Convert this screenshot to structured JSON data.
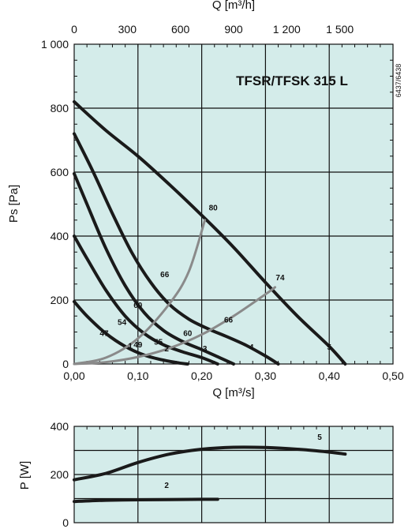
{
  "chart_data": [
    {
      "type": "line",
      "title": "TFSR/TFSK 315 L",
      "xlabel": "Q [m³/s]",
      "ylabel": "Ps [Pa]",
      "top_axis_label": "Q [m³/h]",
      "code": "6437/6438",
      "xlim": [
        0,
        0.5
      ],
      "ylim": [
        0,
        1000
      ],
      "x_ticks": [
        "0,00",
        "0,10",
        "0,20",
        "0,30",
        "0,40",
        "0,50"
      ],
      "y_ticks": [
        "0",
        "200",
        "400",
        "600",
        "800",
        "1 000"
      ],
      "top_ticks": [
        {
          "value": 0,
          "label": "0"
        },
        {
          "value": 300,
          "label": "300"
        },
        {
          "value": 600,
          "label": "600"
        },
        {
          "value": 900,
          "label": "900"
        },
        {
          "value": 1200,
          "label": "1 200"
        },
        {
          "value": 1500,
          "label": "1 500"
        }
      ],
      "grid": true,
      "series": [
        {
          "name": "1",
          "points": [
            [
              0,
              195
            ],
            [
              0.02,
              150
            ],
            [
              0.05,
              95
            ],
            [
              0.08,
              55
            ],
            [
              0.11,
              28
            ],
            [
              0.14,
              12
            ],
            [
              0.165,
              3
            ],
            [
              0.178,
              0
            ]
          ]
        },
        {
          "name": "2",
          "points": [
            [
              0,
              400
            ],
            [
              0.02,
              330
            ],
            [
              0.05,
              230
            ],
            [
              0.08,
              150
            ],
            [
              0.11,
              95
            ],
            [
              0.14,
              60
            ],
            [
              0.17,
              38
            ],
            [
              0.2,
              20
            ],
            [
              0.225,
              0
            ]
          ]
        },
        {
          "name": "3",
          "points": [
            [
              0,
              595
            ],
            [
              0.02,
              500
            ],
            [
              0.05,
              360
            ],
            [
              0.08,
              245
            ],
            [
              0.11,
              160
            ],
            [
              0.14,
              105
            ],
            [
              0.17,
              70
            ],
            [
              0.2,
              45
            ],
            [
              0.23,
              18
            ],
            [
              0.25,
              0
            ]
          ]
        },
        {
          "name": "4",
          "points": [
            [
              0,
              720
            ],
            [
              0.03,
              600
            ],
            [
              0.06,
              470
            ],
            [
              0.09,
              350
            ],
            [
              0.12,
              255
            ],
            [
              0.15,
              185
            ],
            [
              0.18,
              140
            ],
            [
              0.21,
              110
            ],
            [
              0.24,
              85
            ],
            [
              0.27,
              58
            ],
            [
              0.3,
              25
            ],
            [
              0.32,
              0
            ]
          ]
        },
        {
          "name": "5",
          "points": [
            [
              0,
              820
            ],
            [
              0.05,
              730
            ],
            [
              0.1,
              650
            ],
            [
              0.15,
              560
            ],
            [
              0.2,
              465
            ],
            [
              0.25,
              365
            ],
            [
              0.3,
              255
            ],
            [
              0.35,
              150
            ],
            [
              0.4,
              55
            ],
            [
              0.425,
              0
            ]
          ]
        }
      ],
      "system_curves": [
        {
          "label": "80",
          "points": [
            [
              0,
              0
            ],
            [
              0.05,
              20
            ],
            [
              0.1,
              80
            ],
            [
              0.15,
              190
            ],
            [
              0.18,
              290
            ],
            [
              0.205,
              450
            ]
          ]
        },
        {
          "label": "74",
          "points": [
            [
              0,
              0
            ],
            [
              0.05,
              6
            ],
            [
              0.1,
              22
            ],
            [
              0.15,
              50
            ],
            [
              0.2,
              92
            ],
            [
              0.25,
              150
            ],
            [
              0.3,
              218
            ],
            [
              0.315,
              240
            ]
          ]
        }
      ],
      "annotations": [
        {
          "text": "80",
          "x": 0.218,
          "y": 480
        },
        {
          "text": "74",
          "x": 0.323,
          "y": 262
        },
        {
          "text": "66",
          "x": 0.142,
          "y": 272
        },
        {
          "text": "60",
          "x": 0.1,
          "y": 175
        },
        {
          "text": "54",
          "x": 0.075,
          "y": 122
        },
        {
          "text": "47",
          "x": 0.047,
          "y": 88
        },
        {
          "text": "60",
          "x": 0.178,
          "y": 88
        },
        {
          "text": "66",
          "x": 0.242,
          "y": 130
        },
        {
          "text": "55",
          "x": 0.132,
          "y": 60
        },
        {
          "text": "1",
          "x": 0.088,
          "y": 48
        },
        {
          "text": "49",
          "x": 0.1,
          "y": 52
        },
        {
          "text": "2",
          "x": 0.145,
          "y": 40
        },
        {
          "text": "3",
          "x": 0.205,
          "y": 40
        },
        {
          "text": "4",
          "x": 0.278,
          "y": 45
        },
        {
          "text": "5",
          "x": 0.4,
          "y": 45
        }
      ]
    },
    {
      "type": "line",
      "ylabel": "P [W]",
      "ylim": [
        0,
        400
      ],
      "xlim": [
        0,
        0.5
      ],
      "y_ticks": [
        "0",
        "200",
        "400"
      ],
      "grid": true,
      "series": [
        {
          "name": "5",
          "points": [
            [
              0,
              178
            ],
            [
              0.05,
              205
            ],
            [
              0.1,
              250
            ],
            [
              0.15,
              285
            ],
            [
              0.2,
              305
            ],
            [
              0.25,
              313
            ],
            [
              0.3,
              312
            ],
            [
              0.35,
              305
            ],
            [
              0.4,
              293
            ],
            [
              0.425,
              285
            ]
          ]
        },
        {
          "name": "2",
          "points": [
            [
              0,
              88
            ],
            [
              0.05,
              93
            ],
            [
              0.1,
              95
            ],
            [
              0.15,
              96
            ],
            [
              0.2,
              97
            ],
            [
              0.225,
              97
            ]
          ]
        }
      ],
      "annotations": [
        {
          "text": "5",
          "x": 0.385,
          "y": 345
        },
        {
          "text": "2",
          "x": 0.145,
          "y": 145
        }
      ]
    }
  ]
}
